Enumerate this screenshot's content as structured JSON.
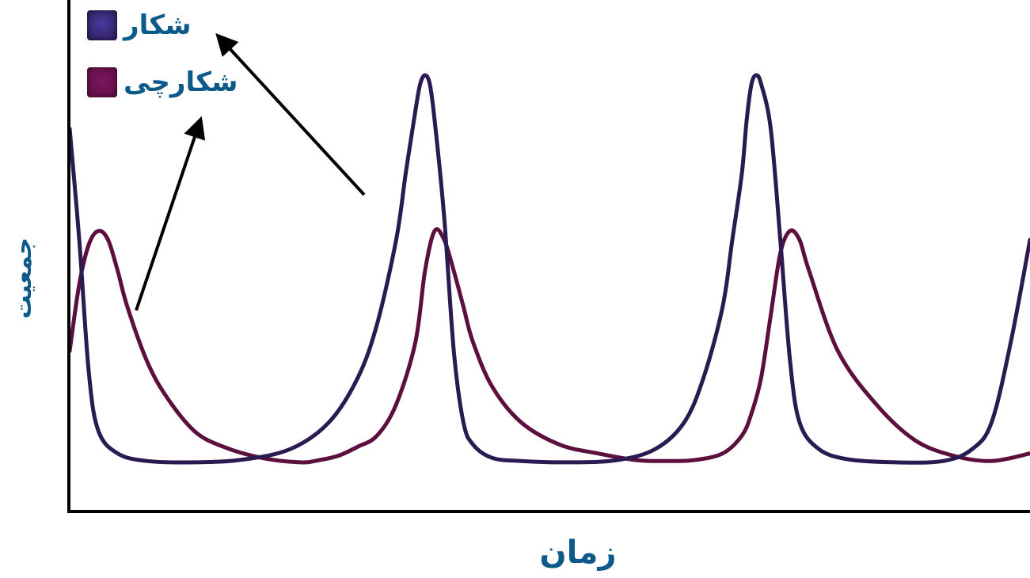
{
  "chart_data": {
    "type": "line",
    "title": "",
    "xlabel": "زمان",
    "ylabel": "جمعیت",
    "grid": false,
    "legend_position": "top-left",
    "xlim": [
      0,
      1000
    ],
    "ylim": [
      0,
      100
    ],
    "series": [
      {
        "name": "شکار",
        "color": "#2a1a52",
        "swatch_color": "#4a3aa0",
        "x": [
          0,
          10,
          20,
          30,
          50,
          80,
          130,
          180,
          230,
          270,
          300,
          320,
          340,
          350,
          360,
          365,
          370,
          375,
          380,
          390,
          400,
          410,
          420,
          440,
          470,
          520,
          570,
          610,
          640,
          660,
          680,
          690,
          700,
          705,
          710,
          715,
          720,
          730,
          740,
          750,
          760,
          780,
          810,
          860,
          910,
          940,
          960,
          980,
          1000
        ],
        "y": [
          80,
          55,
          25,
          12,
          7,
          5.3,
          5,
          5.6,
          8,
          14,
          24,
          36,
          55,
          70,
          84,
          90,
          92,
          90,
          82,
          60,
          30,
          14,
          9,
          6,
          5.3,
          5,
          5.5,
          8,
          14,
          24,
          40,
          55,
          70,
          82,
          90,
          92,
          90,
          80,
          55,
          28,
          14,
          8,
          5.7,
          5,
          5.3,
          8,
          14,
          32,
          55
        ]
      },
      {
        "name": "شکارچی",
        "color": "#5c0f3c",
        "swatch_color": "#7a1463",
        "x": [
          0,
          10,
          20,
          30,
          40,
          50,
          60,
          80,
          100,
          130,
          160,
          200,
          240,
          260,
          280,
          300,
          320,
          340,
          360,
          370,
          380,
          390,
          400,
          410,
          420,
          440,
          470,
          510,
          550,
          590,
          620,
          650,
          680,
          700,
          710,
          720,
          730,
          740,
          750,
          760,
          770,
          800,
          840,
          880,
          920,
          960,
          1000
        ],
        "y": [
          30,
          45,
          54,
          57,
          55,
          48,
          40,
          28,
          20,
          12,
          8.5,
          6,
          5,
          5.5,
          6.5,
          8.5,
          11,
          18,
          32,
          48,
          57,
          55,
          48,
          40,
          32,
          22,
          14,
          9,
          7,
          5.5,
          5.3,
          5.5,
          7,
          11,
          16,
          24,
          38,
          52,
          57,
          55,
          48,
          30,
          18,
          10,
          6.5,
          5.3,
          7
        ]
      }
    ],
    "annotations": [
      {
        "type": "arrow",
        "points_to": "شکار"
      },
      {
        "type": "arrow",
        "points_to": "شکارچی"
      }
    ]
  }
}
